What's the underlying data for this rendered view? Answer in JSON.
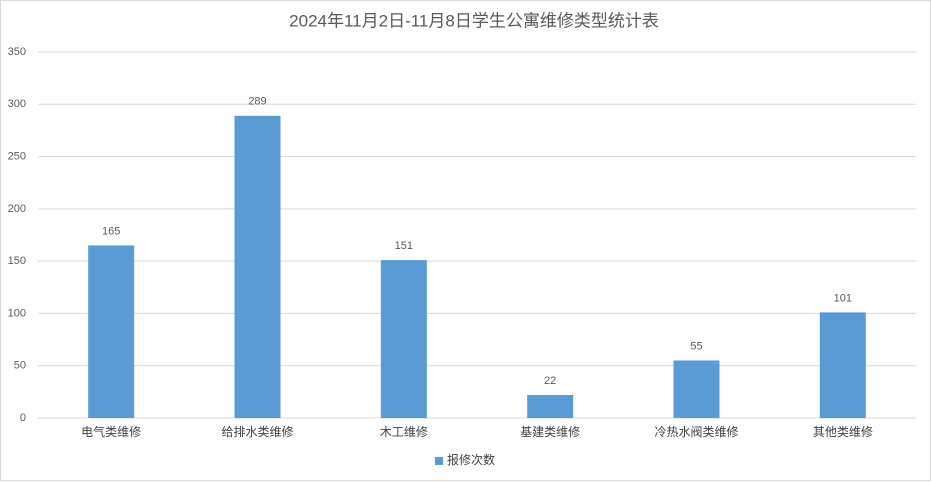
{
  "chart_data": {
    "type": "bar",
    "title": "2024年11月2日-11月8日学生公寓维修类型统计表",
    "categories": [
      "电气类维修",
      "给排水类维修",
      "木工维修",
      "基建类维修",
      "冷热水阀类维修",
      "其他类维修"
    ],
    "series": [
      {
        "name": "报修次数",
        "color": "#5b9bd5",
        "values": [
          165,
          289,
          151,
          22,
          55,
          101
        ]
      }
    ],
    "ylim": [
      0,
      350
    ],
    "yticks": [
      0,
      50,
      100,
      150,
      200,
      250,
      300,
      350
    ],
    "grid": true,
    "legend": "bottom"
  }
}
